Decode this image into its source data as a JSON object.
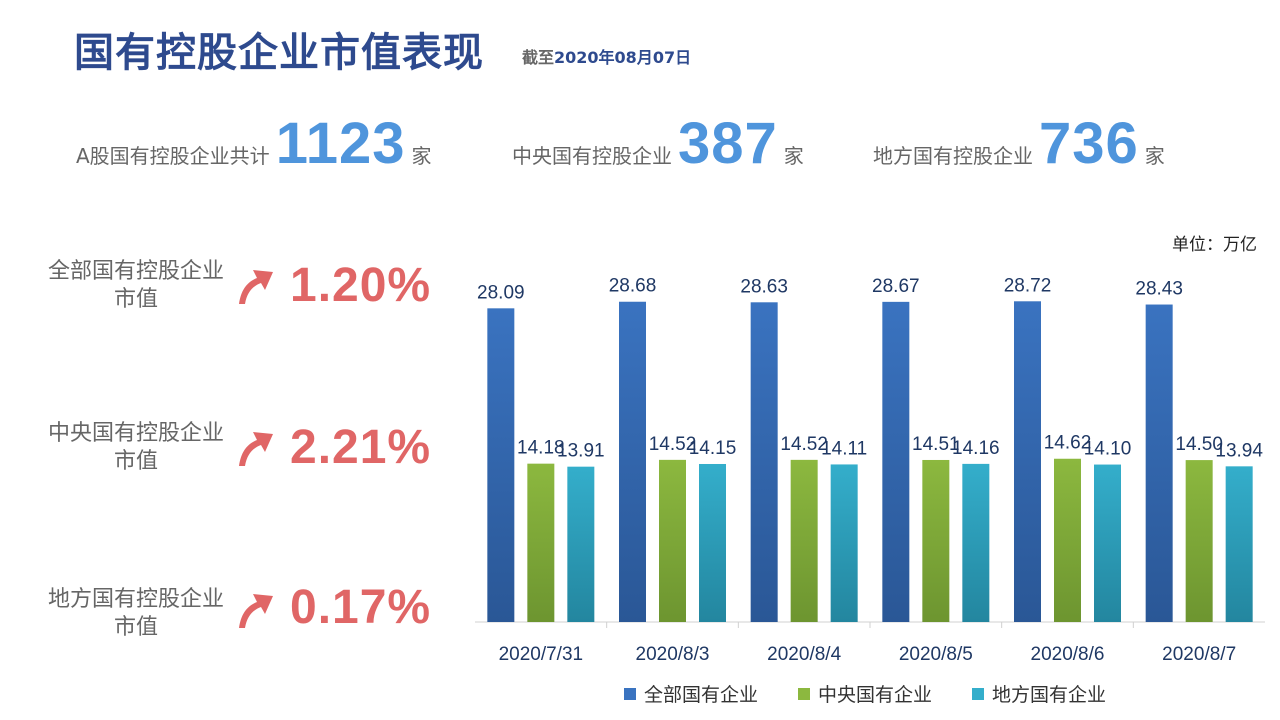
{
  "header": {
    "title": "国有控股企业市值表现",
    "as_of_prefix": "截至",
    "as_of_date": "2020年08月07日"
  },
  "stats": [
    {
      "label": "A股国有控股企业共计",
      "value": "1123",
      "unit": "家"
    },
    {
      "label": "中央国有控股企业",
      "value": "387",
      "unit": "家"
    },
    {
      "label": "地方国有控股企业",
      "value": "736",
      "unit": "家"
    }
  ],
  "kpis": [
    {
      "label": "全部国有控股企业市值",
      "change": "1.20%"
    },
    {
      "label": "中央国有控股企业市值",
      "change": "2.21%"
    },
    {
      "label": "地方国有控股企业市值",
      "change": "0.17%"
    }
  ],
  "unit_label": "单位：万亿",
  "colors": {
    "title": "#2e4a8e",
    "stat_number": "#4f95dc",
    "kpi_value": "#e06666",
    "series_all": "#3a73c0",
    "series_central": "#8cb83f",
    "series_local": "#34aecb"
  },
  "chart_data": {
    "type": "bar",
    "categories": [
      "2020/7/31",
      "2020/8/3",
      "2020/8/4",
      "2020/8/5",
      "2020/8/6",
      "2020/8/7"
    ],
    "series": [
      {
        "name": "全部国有企业",
        "values": [
          28.09,
          28.68,
          28.63,
          28.67,
          28.72,
          28.43
        ],
        "labels": [
          "28.09",
          "28.68",
          "28.63",
          "28.67",
          "28.72",
          "28.43"
        ]
      },
      {
        "name": "中央国有企业",
        "values": [
          14.18,
          14.52,
          14.52,
          14.51,
          14.62,
          14.5
        ],
        "labels": [
          "14.18",
          "14.52",
          "14.52",
          "14.51",
          "14.62",
          "14.50"
        ]
      },
      {
        "name": "地方国有企业",
        "values": [
          13.91,
          14.15,
          14.11,
          14.16,
          14.1,
          13.94
        ],
        "labels": [
          "13.91",
          "14.15",
          "14.11",
          "14.16",
          "14.10",
          "13.94"
        ]
      }
    ],
    "ylim": [
      0,
      30
    ],
    "grid": false,
    "legend": "bottom",
    "xlabel": "",
    "ylabel": ""
  }
}
